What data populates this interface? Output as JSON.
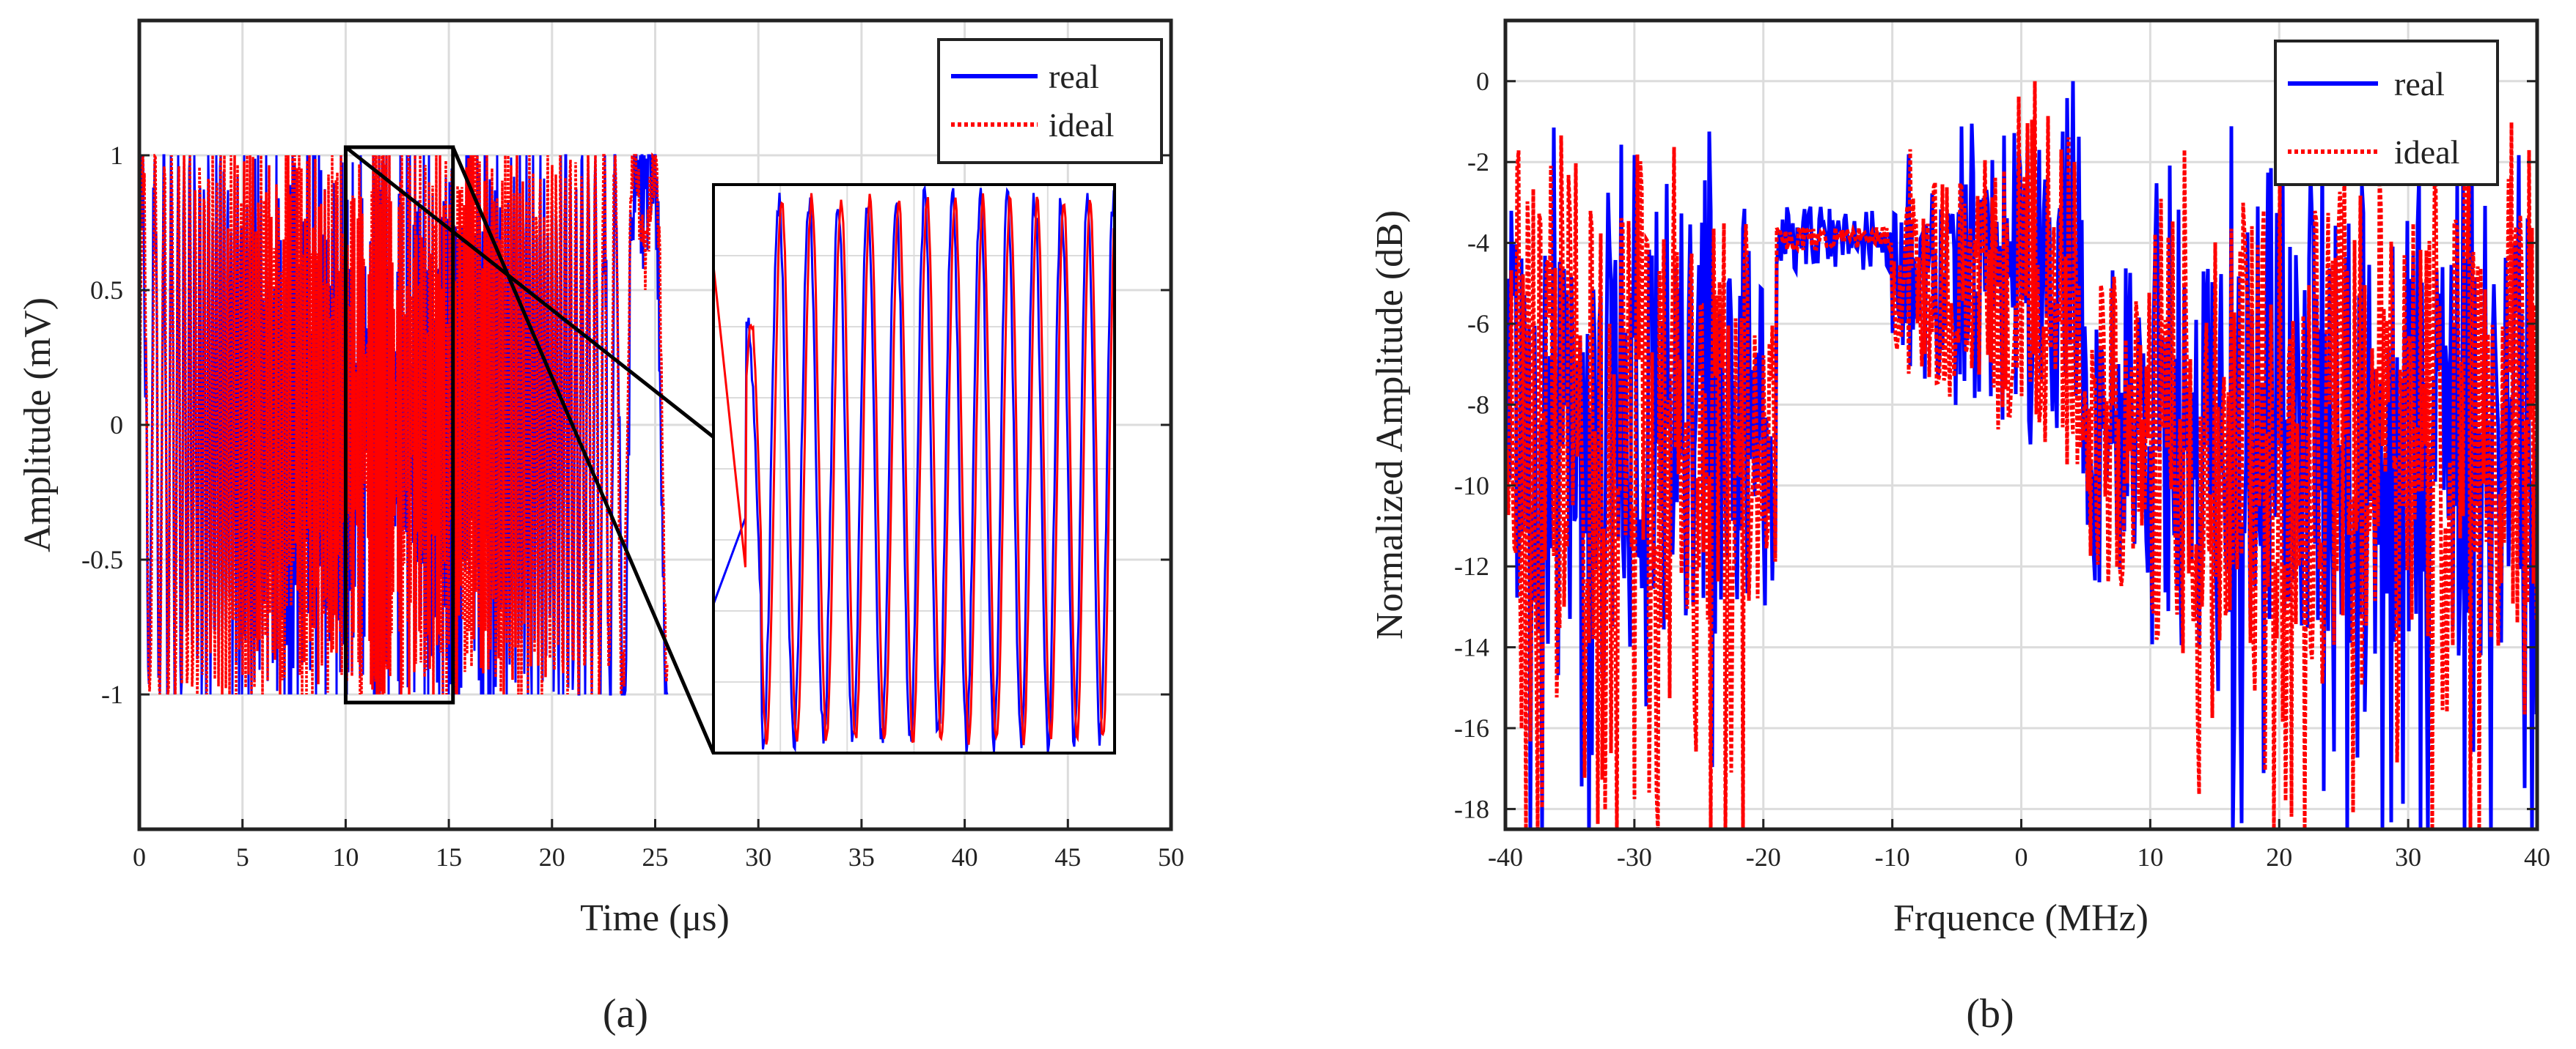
{
  "figure": {
    "panels": [
      "(a)",
      "(b)"
    ]
  },
  "chart_data": [
    {
      "type": "line",
      "title": "",
      "xlabel": "Time (μs)",
      "ylabel": "Amplitude (mV)",
      "xlim": [
        0,
        50
      ],
      "ylim": [
        -1.5,
        1.5
      ],
      "xticks": [
        0,
        5,
        10,
        15,
        20,
        25,
        30,
        35,
        40,
        45,
        50
      ],
      "yticks": [
        -1,
        -0.5,
        0,
        0.5,
        1
      ],
      "xtick_labels": [
        "0",
        "5",
        "10",
        "15",
        "20",
        "25",
        "30",
        "35",
        "40",
        "45",
        "50"
      ],
      "ytick_labels": [
        "-1",
        "-0.5",
        "0",
        "0.5",
        "1"
      ],
      "grid": true,
      "legend": {
        "position": "top-right",
        "entries": [
          "real",
          "ideal"
        ]
      },
      "series": [
        {
          "name": "real",
          "color": "#0000ff",
          "style": "solid",
          "description": "chirp-like oscillation between -1 and 1 over 0 to 25.6 μs"
        },
        {
          "name": "ideal",
          "color": "#ff0000",
          "style": "dotted",
          "description": "chirp-like oscillation between -1 and 1 over 0 to 25.6 μs"
        }
      ],
      "signal_extent_us": [
        0,
        25.6
      ],
      "zoom_region": {
        "x": [
          10,
          15.2
        ],
        "y": [
          -1.03,
          1.03
        ]
      }
    },
    {
      "type": "line",
      "title": "",
      "xlabel": "Frquence (MHz)",
      "ylabel": "Normalized Amplitude (dB)",
      "xlim": [
        -40,
        40
      ],
      "ylim": [
        -18.5,
        1.5
      ],
      "xticks": [
        -40,
        -30,
        -20,
        -10,
        0,
        10,
        20,
        30,
        40
      ],
      "yticks": [
        0,
        -2,
        -4,
        -6,
        -8,
        -10,
        -12,
        -14,
        -16,
        -18
      ],
      "xtick_labels": [
        "-40",
        "-30",
        "-20",
        "-10",
        "0",
        "10",
        "20",
        "30",
        "40"
      ],
      "ytick_labels": [
        "0",
        "-2",
        "-4",
        "-6",
        "-8",
        "-10",
        "-12",
        "-14",
        "-16",
        "-18"
      ],
      "grid": true,
      "legend": {
        "position": "top-right",
        "entries": [
          "real",
          "ideal"
        ]
      },
      "series": [
        {
          "name": "real",
          "color": "#0000ff",
          "style": "solid",
          "description": "noisy spectrum, passband about -20 to 5 MHz near -4 to -1 dB"
        },
        {
          "name": "ideal",
          "color": "#ff0000",
          "style": "dotted",
          "description": "noisy spectrum, passband about -20 to 5 MHz near -4 to 0 dB"
        }
      ],
      "passband_mhz": [
        -20,
        5
      ],
      "peak_db": 0
    }
  ]
}
